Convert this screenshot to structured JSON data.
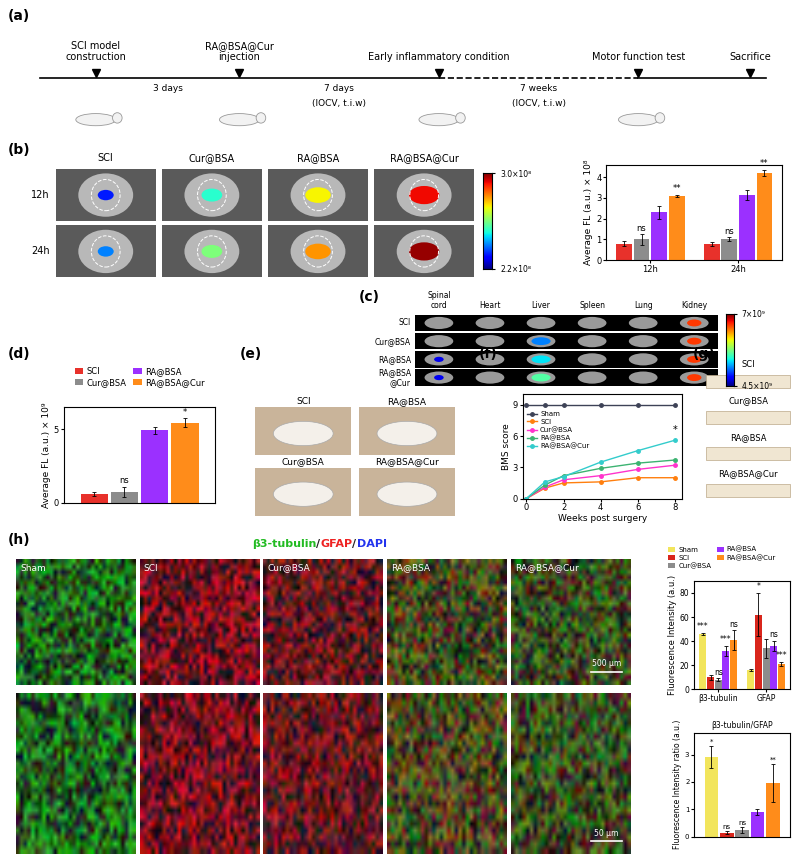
{
  "panels": {
    "a": {
      "label": "(a)",
      "events": [
        "SCI model\nconstruction",
        "RA@BSA@Cur\ninjection",
        "Early inflammatory condition",
        "Motor function test",
        "Sacrifice"
      ],
      "intervals": [
        {
          "text": "3 days"
        },
        {
          "text": "7 days",
          "note": "(IOCV, t.i.w)"
        },
        {
          "text": "7 weeks",
          "note": "(IOCV, t.i.w)"
        }
      ]
    },
    "b": {
      "label": "(b)",
      "groups": [
        "SCI",
        "Cur@BSA",
        "RA@BSA",
        "RA@BSA@Cur"
      ],
      "rows": [
        "12h",
        "24h"
      ],
      "colorbar": {
        "range": [
          220000000,
          300000000
        ],
        "ticks": [
          {
            "value": 300000000,
            "label": "3.0×10⁸"
          },
          {
            "value": 220000000,
            "label": "2.2×10⁸"
          }
        ]
      }
    },
    "c": {
      "label": "(c)",
      "organs": [
        "Spinal\ncord",
        "Heart",
        "Liver",
        "Spleen",
        "Lung",
        "Kidney"
      ],
      "rows": [
        "SCI",
        "Cur@BSA",
        "RA@BSA",
        "RA@BSA\n@Cur"
      ],
      "colorbar": {
        "range": [
          4500000000,
          7000000000
        ],
        "ticks": [
          {
            "value": 7000000000,
            "label": "7×10⁹"
          },
          {
            "value": 4500000000,
            "label": "4.5×10⁹"
          }
        ]
      }
    },
    "d": {
      "label": "(d)"
    },
    "e": {
      "label": "(e)",
      "photos": [
        "SCI",
        "RA@BSA",
        "Cur@BSA",
        "RA@BSA@Cur"
      ]
    },
    "f": {
      "label": "(f)"
    },
    "g": {
      "label": "(g)",
      "photos": [
        "SCI",
        "Cur@BSA",
        "RA@BSA",
        "RA@BSA@Cur"
      ]
    },
    "h": {
      "label": "(h)",
      "title_parts": [
        "β3-tubulin",
        "/",
        "GFAP",
        "/",
        "DAPI"
      ],
      "title_colors": [
        "#22bb22",
        "#222222",
        "#ee2222",
        "#222222",
        "#2233ee"
      ],
      "groups": [
        "Sham",
        "SCI",
        "Cur@BSA",
        "RA@BSA",
        "RA@BSA@Cur"
      ],
      "scale_bars": [
        "500 µm",
        "50 µm"
      ]
    }
  },
  "chart_data": [
    {
      "type": "bar",
      "categories": [
        "12h",
        "24h"
      ],
      "ylabel": "Average FL (a.u.) × 10⁸",
      "ylim": [
        0,
        4.6
      ],
      "yticks": [
        0,
        1,
        2,
        3,
        4
      ],
      "series": [
        {
          "color": "#e8312b",
          "values": [
            0.8,
            0.78
          ],
          "errors": [
            0.1,
            0.08
          ]
        },
        {
          "color": "#8c8c8c",
          "values": [
            1.0,
            1.0
          ],
          "errors": [
            0.25,
            0.1
          ]
        },
        {
          "color": "#9b30ff",
          "values": [
            2.3,
            3.15
          ],
          "errors": [
            0.3,
            0.25
          ]
        },
        {
          "color": "#ff8c1a",
          "values": [
            3.1,
            4.2
          ],
          "errors": [
            0.05,
            0.15
          ]
        }
      ],
      "annotations": [
        {
          "text": "ns",
          "category": 0,
          "series": 1
        },
        {
          "text": "**",
          "category": 0,
          "series": 3
        },
        {
          "text": "ns",
          "category": 1,
          "series": 1
        },
        {
          "text": "**",
          "category": 1,
          "series": 3
        }
      ]
    },
    {
      "type": "bar",
      "categories": [
        null
      ],
      "ylabel": "Average FL (a.u.) × 10⁹",
      "ylim": [
        0,
        6.5
      ],
      "yticks": [
        0,
        5
      ],
      "legend": "upper center",
      "series": [
        {
          "name": "SCI",
          "color": "#e8312b",
          "values": [
            0.6
          ],
          "errors": [
            0.15
          ]
        },
        {
          "name": "Cur@BSA",
          "color": "#8c8c8c",
          "values": [
            0.75
          ],
          "errors": [
            0.35
          ]
        },
        {
          "name": "RA@BSA",
          "color": "#9b30ff",
          "values": [
            4.95
          ],
          "errors": [
            0.25
          ]
        },
        {
          "name": "RA@BSA@Cur",
          "color": "#ff8c1a",
          "values": [
            5.45
          ],
          "errors": [
            0.3
          ]
        }
      ],
      "annotations": [
        {
          "text": "ns",
          "category": 0,
          "series": 1
        },
        {
          "text": "*",
          "category": 0,
          "series": 3
        }
      ]
    },
    {
      "type": "line",
      "xlabel": "Weeks post surgery",
      "ylabel": "BMS score",
      "x": [
        0,
        1,
        2,
        4,
        6,
        8
      ],
      "xlim": [
        -0.2,
        8.4
      ],
      "xticks": [
        0,
        2,
        4,
        6,
        8
      ],
      "ylim": [
        0,
        10
      ],
      "yticks": [
        0,
        3,
        6,
        9
      ],
      "legend": "upper left",
      "marker": "o",
      "series": [
        {
          "name": "Sham",
          "color": "#3d4256",
          "values": [
            9,
            9,
            9,
            9,
            9,
            9
          ]
        },
        {
          "name": "SCI",
          "color": "#ff7f0e",
          "values": [
            0,
            1.0,
            1.5,
            1.6,
            2.0,
            2.0
          ]
        },
        {
          "name": "Cur@BSA",
          "color": "#ff33cc",
          "values": [
            0,
            1.1,
            1.8,
            2.2,
            2.8,
            3.2
          ]
        },
        {
          "name": "RA@BSA",
          "color": "#3cb371",
          "values": [
            0,
            1.3,
            2.2,
            2.9,
            3.4,
            3.7
          ]
        },
        {
          "name": "RA@BSA@Cur",
          "color": "#33cccc",
          "values": [
            0,
            1.6,
            2.1,
            3.5,
            4.6,
            5.6
          ]
        }
      ],
      "annotations": [
        {
          "text": "*",
          "x": 8,
          "series": 4
        }
      ]
    },
    {
      "type": "bar",
      "categories": [
        "β3-tubulin",
        "GFAP"
      ],
      "ylabel": "Fluorescence Intensity (a.u.)",
      "ylim": [
        0,
        90
      ],
      "yticks": [
        0,
        20,
        40,
        60,
        80
      ],
      "legend": "upper center",
      "series": [
        {
          "name": "Sham",
          "color": "#f2e55c",
          "values": [
            46,
            16
          ],
          "errors": [
            1,
            1
          ]
        },
        {
          "name": "SCI",
          "color": "#d9261c",
          "values": [
            10,
            62
          ],
          "errors": [
            2,
            18
          ]
        },
        {
          "name": "Cur@BSA",
          "color": "#8c8c8c",
          "values": [
            8,
            34
          ],
          "errors": [
            1,
            8
          ]
        },
        {
          "name": "RA@BSA",
          "color": "#9b30ff",
          "values": [
            32,
            36
          ],
          "errors": [
            4,
            4
          ]
        },
        {
          "name": "RA@BSA@Cur",
          "color": "#ff8c1a",
          "values": [
            41,
            21
          ],
          "errors": [
            8,
            2
          ]
        }
      ],
      "annotations": [
        {
          "text": "***",
          "category": 0,
          "series": 0
        },
        {
          "text": "ns",
          "category": 0,
          "series": 2
        },
        {
          "text": "***",
          "category": 0,
          "series": 3
        },
        {
          "text": "ns",
          "category": 0,
          "series": 4
        },
        {
          "text": "*",
          "category": 1,
          "series": 1
        },
        {
          "text": "ns",
          "category": 1,
          "series": 3
        },
        {
          "text": "***",
          "category": 1,
          "series": 4
        }
      ]
    },
    {
      "type": "bar",
      "title": "β3-tubulin/GFAP",
      "categories": [
        null
      ],
      "ylabel": "Fluorescence Intensity ratio (a.u.)",
      "ylim": [
        0,
        3.8
      ],
      "yticks": [
        0,
        1,
        2,
        3
      ],
      "series": [
        {
          "color": "#f2e55c",
          "values": [
            2.9
          ],
          "errors": [
            0.4
          ]
        },
        {
          "color": "#d9261c",
          "values": [
            0.15
          ],
          "errors": [
            0.05
          ]
        },
        {
          "color": "#8c8c8c",
          "values": [
            0.25
          ],
          "errors": [
            0.1
          ]
        },
        {
          "color": "#9b30ff",
          "values": [
            0.9
          ],
          "errors": [
            0.1
          ]
        },
        {
          "color": "#ff8c1a",
          "values": [
            1.95
          ],
          "errors": [
            0.7
          ]
        }
      ],
      "annotations": [
        {
          "text": "*",
          "category": 0,
          "series": 0
        },
        {
          "text": "ns",
          "category": 0,
          "series": 1
        },
        {
          "text": "ns",
          "category": 0,
          "series": 2
        },
        {
          "text": "**",
          "category": 0,
          "series": 4
        }
      ]
    }
  ]
}
